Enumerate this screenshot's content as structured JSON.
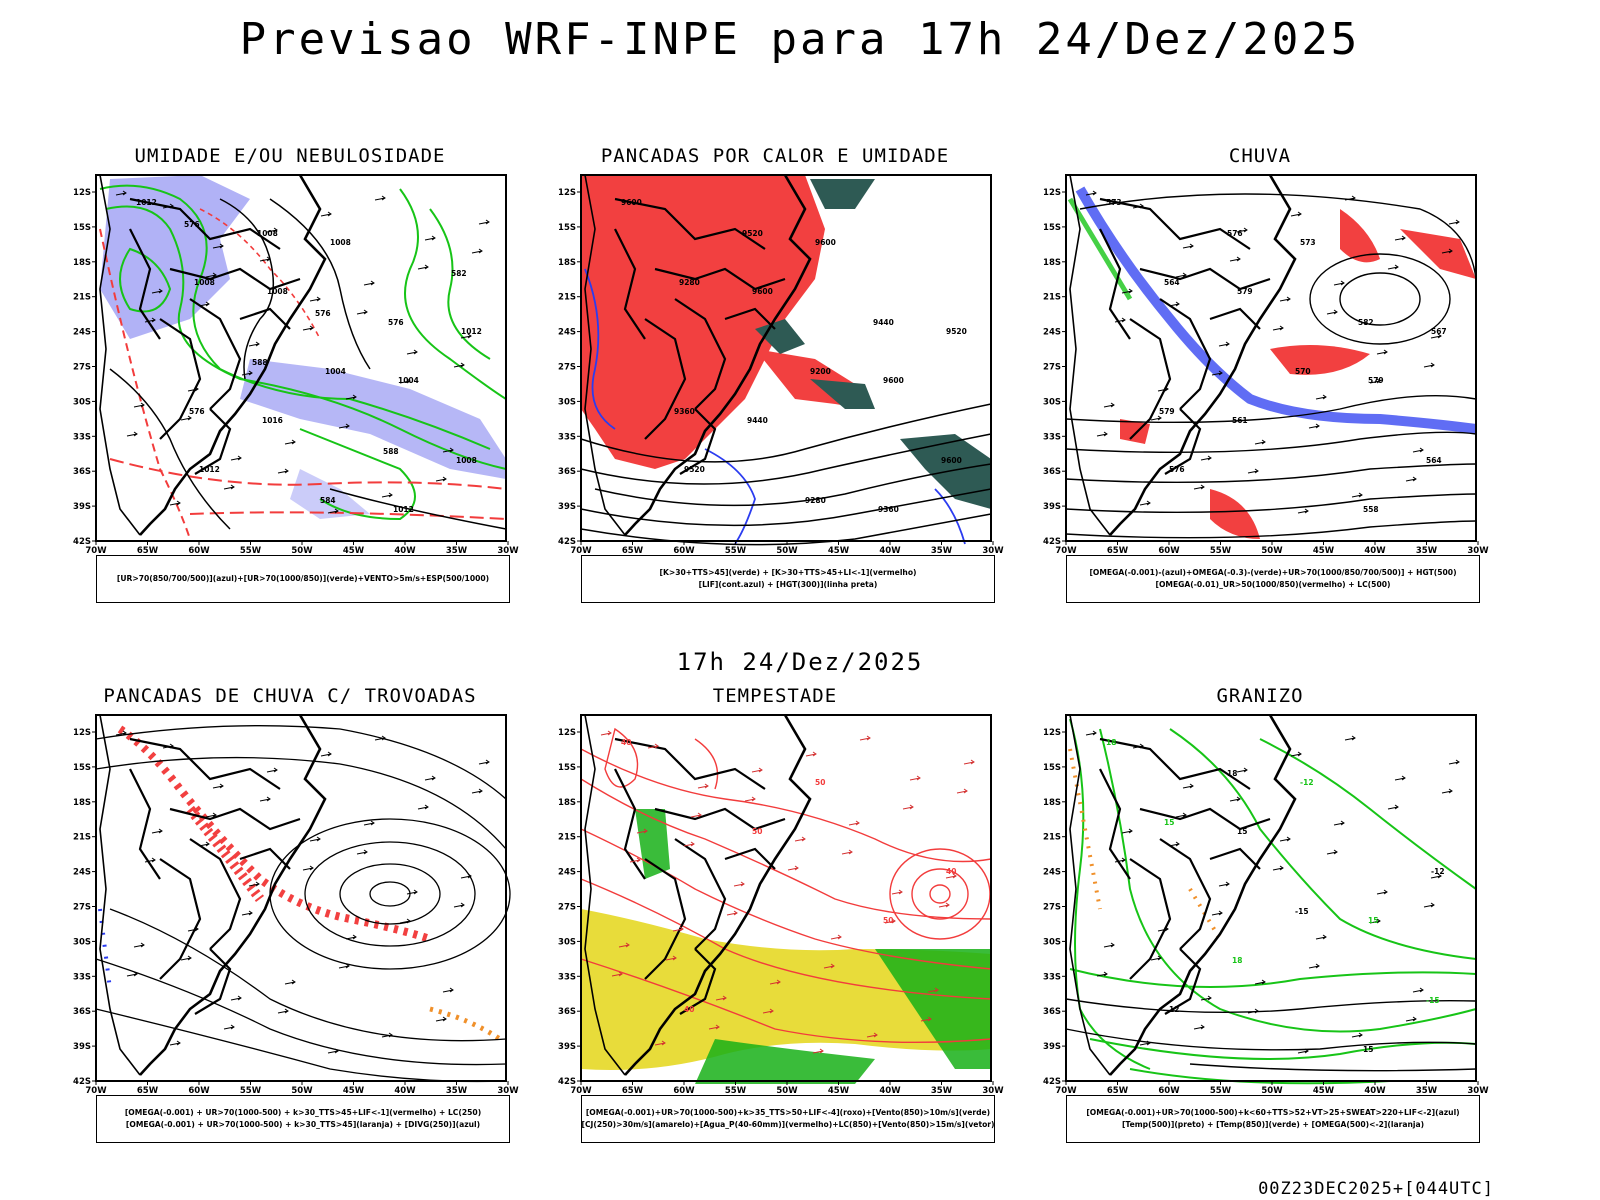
{
  "page": {
    "title": "Previsao WRF-INPE  para 17h 24/Dez/2025",
    "mid_title": "17h 24/Dez/2025",
    "footer": "00Z23DEC2025+[044UTC]"
  },
  "map_axes": {
    "lat_ticks": [
      "12S",
      "15S",
      "18S",
      "21S",
      "24S",
      "27S",
      "30S",
      "33S",
      "36S",
      "39S",
      "42S"
    ],
    "lon_ticks": [
      "70W",
      "65W",
      "60W",
      "55W",
      "50W",
      "45W",
      "40W",
      "35W",
      "30W"
    ]
  },
  "panels": [
    {
      "title": "UMIDADE E/OU NEBULOSIDADE",
      "legend": [
        "[UR>70(850/700/500)](azul)+[UR>70(1000/850)](verde)+VENTO>5m/s+ESP(500/1000)"
      ],
      "contour_labels": [
        "1012",
        "1008",
        "1004",
        "1012",
        "1008",
        "1012",
        "1016",
        "1012",
        "1008",
        "1004",
        "1008",
        "1008",
        "576",
        "576",
        "584",
        "582",
        "588",
        "588",
        "576",
        "576"
      ]
    },
    {
      "title": "PANCADAS POR CALOR E UMIDADE",
      "legend": [
        "[K>30+TTS>45](verde) + [K>30+TTS>45+LI<-1](vermelho)",
        "[LIF](cont.azul) + [HGT(300)](linha preta)"
      ],
      "contour_labels": [
        "9600",
        "9600",
        "9600",
        "9520",
        "9600",
        "9520",
        "9440",
        "9360",
        "9280",
        "9200",
        "9600",
        "9520",
        "9440",
        "9360",
        "9280"
      ]
    },
    {
      "title": "CHUVA",
      "legend": [
        "[OMEGA(-0.001)-(azul)+OMEGA(-0.3)-(verde)+UR>70(1000/850/700/500)] + HGT(500)",
        "[OMEGA(-0.01)_UR>50(1000/850)(vermelho) + LC(500)"
      ],
      "contour_labels": [
        "573",
        "579",
        "579",
        "576",
        "573",
        "567",
        "561",
        "558",
        "564",
        "570",
        "564",
        "576",
        "582",
        "579"
      ]
    },
    {
      "title": "PANCADAS DE CHUVA C/ TROVOADAS",
      "legend": [
        "[OMEGA(-0.001) + UR>70(1000-500) + k>30_TTS>45+LIF<-1](vermelho) + LC(250)",
        "[OMEGA(-0.001) + UR>70(1000-500) + k>30_TTS>45](laranja) + [DIVG(250)](azul)"
      ],
      "contour_labels": []
    },
    {
      "title": "TEMPESTADE",
      "legend": [
        "[OMEGA(-0.001)+UR>70(1000-500)+k>35_TTS>50+LIF<-4](roxo)+[Vento(850)>10m/s](verde)",
        "[CJ(250)>30m/s](amarelo)+[Agua_P(40-60mm)](vermelho)+LC(850)+[Vento(850)>15m/s](vetor)"
      ],
      "contour_labels": [
        "40",
        "50",
        "50",
        "40",
        "50",
        "40"
      ]
    },
    {
      "title": "GRANIZO",
      "legend": [
        "[OMEGA(-0.001)+UR>70(1000-500)+k<60+TTS>52+VT>25+SWEAT>220+LIF<-2](azul)",
        "[Temp(500)](preto) + [Temp(850)](verde) + [OMEGA(500)<-2](laranja)"
      ],
      "contour_labels": [
        "18",
        "15",
        "15",
        "12",
        "-12",
        "-12",
        "18",
        "15",
        "15",
        "-15",
        "-15",
        "18"
      ]
    }
  ],
  "colors": {
    "humidity_blue": "#a9aaf5",
    "green_contour": "#17c417",
    "red_contour": "#f23c3c",
    "red_fill": "#f24040",
    "dark_teal": "#2e5a54",
    "blue": "#2b3cf0",
    "yellow": "#e8dc3a",
    "orange": "#f0902a",
    "purple": "#b030c8",
    "wind_green": "#18b018"
  }
}
